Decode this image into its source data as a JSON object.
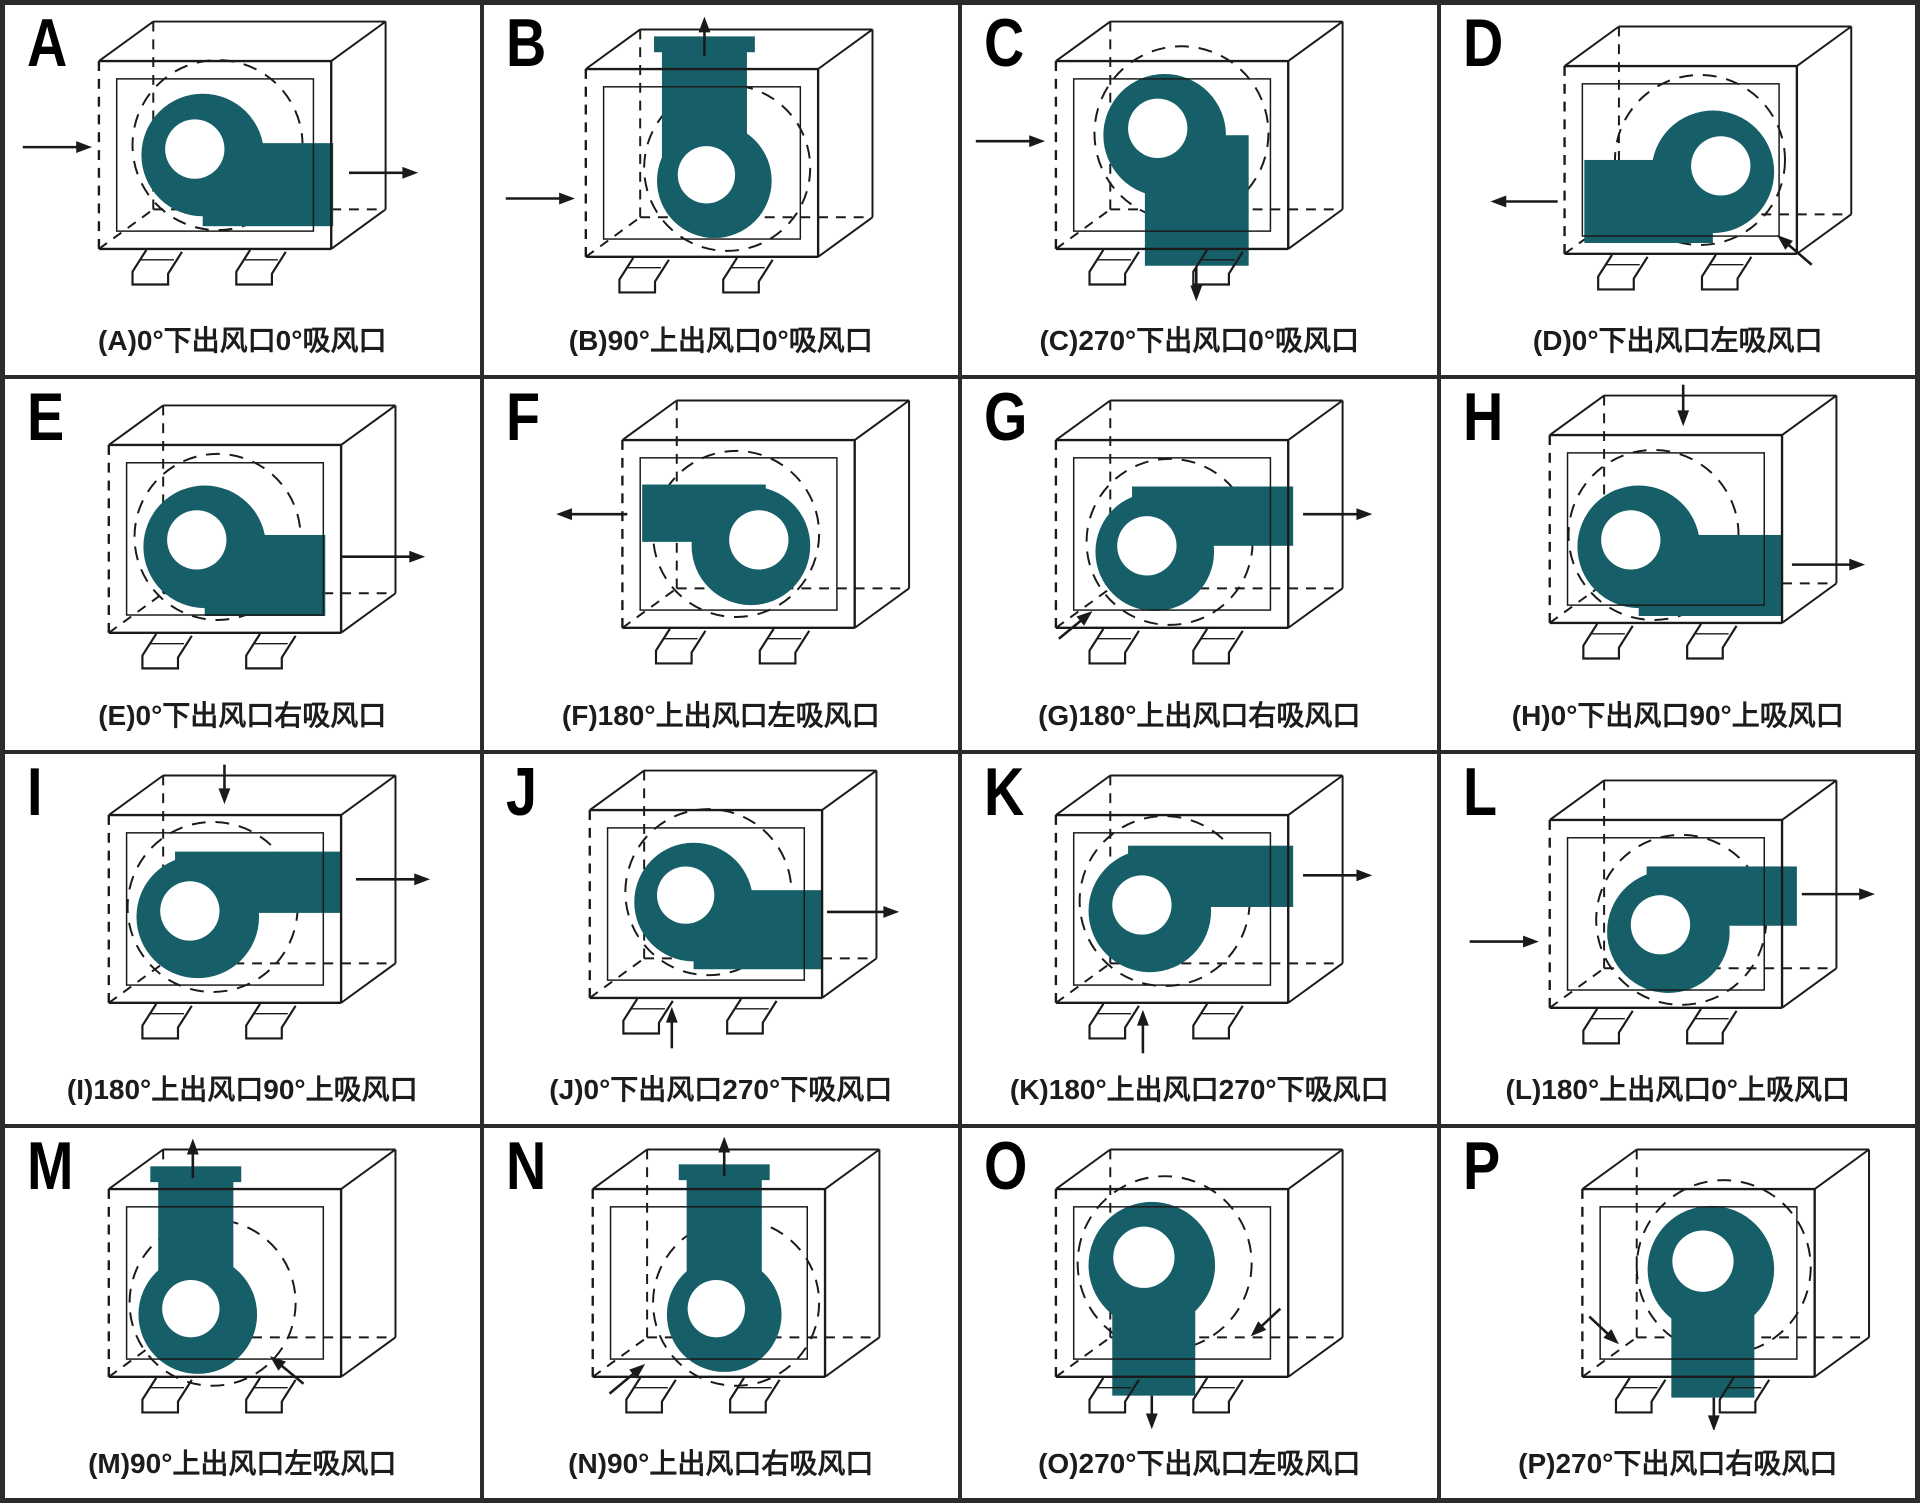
{
  "colors": {
    "fan_fill": "#175f68",
    "line": "#1a1a1a",
    "grid_border": "#2b2b2b",
    "caption_color": "#1c1c1c",
    "background": "#ffffff"
  },
  "cells": [
    {
      "letter": "A",
      "caption": "(A)0°下出风口0°吸风口",
      "shift": [
        0,
        0
      ],
      "fan": {
        "circle": [
          200,
          150,
          62
        ],
        "hole": [
          192,
          144,
          30
        ],
        "ducts": [
          [
            200,
            138,
            132,
            84
          ]
        ],
        "dash": [
          215,
          140,
          86
        ]
      },
      "arrows": [
        [
          18,
          142,
          88,
          142
        ],
        [
          348,
          168,
          418,
          168
        ]
      ]
    },
    {
      "letter": "B",
      "caption": "(B)90°上出风口0°吸风口",
      "shift": [
        8,
        8
      ],
      "fan": {
        "circle": [
          225,
          168,
          58
        ],
        "hole": [
          217,
          162,
          29
        ],
        "ducts": [
          [
            172,
            30,
            86,
            140
          ],
          [
            164,
            22,
            102,
            16
          ]
        ],
        "dash": [
          238,
          155,
          84
        ]
      },
      "arrows": [
        [
          14,
          186,
          84,
          186
        ],
        [
          215,
          42,
          215,
          2
        ]
      ]
    },
    {
      "letter": "C",
      "caption": "(C)270°下出风口0°吸风口",
      "shift": [
        0,
        0
      ],
      "fan": {
        "circle": [
          205,
          130,
          62
        ],
        "hole": [
          198,
          123,
          30
        ],
        "ducts": [
          [
            185,
            130,
            105,
            132
          ]
        ],
        "dash": [
          222,
          128,
          88
        ]
      },
      "arrows": [
        [
          14,
          136,
          84,
          136
        ],
        [
          237,
          264,
          237,
          298
        ]
      ]
    },
    {
      "letter": "D",
      "caption": "(D)0°下出风口左吸风口",
      "shift": [
        30,
        5
      ],
      "fan": {
        "circle": [
          245,
          162,
          62
        ],
        "hole": [
          253,
          156,
          30
        ],
        "ducts": [
          [
            115,
            150,
            130,
            84
          ]
        ],
        "dash": [
          232,
          150,
          86
        ]
      },
      "arrows": [
        [
          88,
          192,
          20,
          192
        ],
        [
          345,
          256,
          310,
          226
        ]
      ]
    },
    {
      "letter": "E",
      "caption": "(E)0°下出风口右吸风口",
      "shift": [
        10,
        10
      ],
      "fan": {
        "circle": [
          192,
          158,
          62
        ],
        "hole": [
          184,
          151,
          30
        ],
        "ducts": [
          [
            192,
            146,
            122,
            82
          ]
        ],
        "dash": [
          205,
          148,
          84
        ]
      },
      "arrows": [
        [
          330,
          168,
          415,
          168
        ]
      ]
    },
    {
      "letter": "F",
      "caption": "(F)180°上出风口左吸风口",
      "shift": [
        45,
        5
      ],
      "fan": {
        "circle": [
          225,
          162,
          60
        ],
        "hole": [
          233,
          156,
          30
        ],
        "ducts": [
          [
            115,
            100,
            125,
            58
          ]
        ],
        "dash": [
          210,
          150,
          84
        ]
      },
      "arrows": [
        [
          100,
          130,
          28,
          130
        ]
      ]
    },
    {
      "letter": "G",
      "caption": "(G)180°上出风口右吸风口",
      "shift": [
        0,
        5
      ],
      "fan": {
        "circle": [
          195,
          168,
          60
        ],
        "hole": [
          187,
          162,
          30
        ],
        "ducts": [
          [
            172,
            102,
            163,
            60
          ]
        ],
        "dash": [
          210,
          158,
          84
        ]
      },
      "arrows": [
        [
          345,
          130,
          415,
          130
        ],
        [
          98,
          256,
          132,
          228
        ]
      ]
    },
    {
      "letter": "H",
      "caption": "(H)0°下出风口90°上吸风口",
      "shift": [
        15,
        0
      ],
      "fan": {
        "circle": [
          185,
          168,
          62
        ],
        "hole": [
          177,
          161,
          30
        ],
        "ducts": [
          [
            185,
            156,
            145,
            82
          ]
        ],
        "dash": [
          200,
          156,
          86
        ]
      },
      "arrows": [
        [
          230,
          4,
          230,
          46
        ],
        [
          340,
          186,
          414,
          186
        ]
      ]
    },
    {
      "letter": "I",
      "caption": "(I)180°上出风口90°上吸风口",
      "shift": [
        10,
        5
      ],
      "fan": {
        "circle": [
          185,
          158,
          62
        ],
        "hole": [
          177,
          152,
          30
        ],
        "ducts": [
          [
            162,
            92,
            168,
            62
          ]
        ],
        "dash": [
          200,
          148,
          86
        ]
      },
      "arrows": [
        [
          212,
          4,
          212,
          44
        ],
        [
          345,
          120,
          420,
          120
        ]
      ]
    },
    {
      "letter": "J",
      "caption": "(J)0°下出风口270°下吸风口",
      "shift": [
        12,
        0
      ],
      "fan": {
        "circle": [
          200,
          148,
          60
        ],
        "hole": [
          192,
          141,
          29
        ],
        "ducts": [
          [
            200,
            136,
            130,
            80
          ]
        ],
        "dash": [
          215,
          138,
          84
        ]
      },
      "arrows": [
        [
          335,
          158,
          408,
          158
        ],
        [
          178,
          296,
          178,
          254
        ]
      ]
    },
    {
      "letter": "K",
      "caption": "(K)180°上出风口270°下吸风口",
      "shift": [
        0,
        5
      ],
      "fan": {
        "circle": [
          190,
          152,
          62
        ],
        "hole": [
          182,
          146,
          30
        ],
        "ducts": [
          [
            168,
            86,
            167,
            62
          ]
        ],
        "dash": [
          205,
          142,
          86
        ]
      },
      "arrows": [
        [
          345,
          116,
          415,
          116
        ],
        [
          183,
          296,
          183,
          252
        ]
      ]
    },
    {
      "letter": "L",
      "caption": "(L)180°上出风口0°上吸风口",
      "shift": [
        15,
        10
      ],
      "fan": {
        "circle": [
          215,
          168,
          62
        ],
        "hole": [
          207,
          161,
          30
        ],
        "ducts": [
          [
            193,
            102,
            152,
            60
          ]
        ],
        "dash": [
          228,
          156,
          86
        ]
      },
      "arrows": [
        [
          350,
          130,
          424,
          130
        ],
        [
          14,
          178,
          84,
          178
        ]
      ]
    },
    {
      "letter": "M",
      "caption": "(M)90°上出风口左吸风口",
      "shift": [
        10,
        5
      ],
      "fan": {
        "circle": [
          185,
          182,
          60
        ],
        "hole": [
          178,
          176,
          29
        ],
        "ducts": [
          [
            145,
            42,
            76,
            142
          ],
          [
            137,
            32,
            92,
            16
          ]
        ],
        "dash": [
          200,
          170,
          84
        ]
      },
      "arrows": [
        [
          180,
          44,
          180,
          4
        ],
        [
          292,
          252,
          258,
          224
        ]
      ]
    },
    {
      "letter": "N",
      "caption": "(N)90°上出风口右吸风口",
      "shift": [
        15,
        5
      ],
      "fan": {
        "circle": [
          228,
          182,
          58
        ],
        "hole": [
          220,
          176,
          29
        ],
        "ducts": [
          [
            190,
            40,
            76,
            144
          ],
          [
            182,
            30,
            92,
            16
          ]
        ],
        "dash": [
          240,
          170,
          84
        ]
      },
      "arrows": [
        [
          228,
          42,
          228,
          2
        ],
        [
          112,
          262,
          148,
          232
        ]
      ]
    },
    {
      "letter": "O",
      "caption": "(O)270°下出风口左吸风口",
      "shift": [
        0,
        5
      ],
      "fan": {
        "circle": [
          192,
          132,
          64
        ],
        "hole": [
          184,
          124,
          31
        ],
        "ducts": [
          [
            152,
            132,
            84,
            132
          ]
        ],
        "dash": [
          205,
          130,
          88
        ]
      },
      "arrows": [
        [
          192,
          264,
          192,
          298
        ],
        [
          322,
          176,
          292,
          204
        ]
      ]
    },
    {
      "letter": "P",
      "caption": "(P)270°下出风口右吸风口",
      "shift": [
        48,
        5
      ],
      "fan": {
        "circle": [
          225,
          136,
          64
        ],
        "hole": [
          217,
          128,
          31
        ],
        "ducts": [
          [
            185,
            136,
            84,
            130
          ]
        ],
        "dash": [
          238,
          134,
          88
        ]
      },
      "arrows": [
        [
          228,
          266,
          228,
          300
        ],
        [
          102,
          184,
          132,
          212
        ]
      ]
    }
  ]
}
